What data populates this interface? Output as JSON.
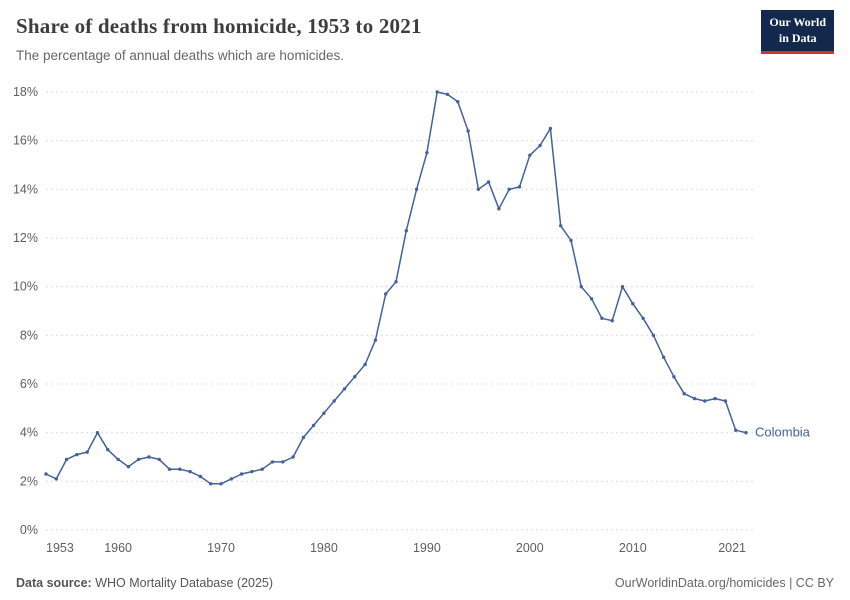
{
  "header": {
    "title": "Share of deaths from homicide, 1953 to 2021",
    "subtitle": "The percentage of annual deaths which are homicides.",
    "logo_line1": "Our World",
    "logo_line2": "in Data"
  },
  "colors": {
    "line": "#44619b",
    "logo_background": "#12294d",
    "logo_accent": "#d0362c",
    "gridline": "#dcdcdc"
  },
  "chart_data": {
    "type": "line",
    "title": "Share of deaths from homicide, 1953 to 2021",
    "subtitle": "The percentage of annual deaths which are homicides.",
    "series_label": "Colombia",
    "line_color": "#44619b",
    "xlim": [
      1953,
      2021
    ],
    "ylim": [
      0,
      18
    ],
    "yticks": [
      0,
      2,
      4,
      6,
      8,
      10,
      12,
      14,
      16,
      18
    ],
    "ytick_suffix": "%",
    "xticks": [
      1953,
      1960,
      1970,
      1980,
      1990,
      2000,
      2010,
      2021
    ],
    "grid": "horizontal-dashed",
    "legend_position": "end-of-line",
    "x": [
      1953,
      1954,
      1955,
      1956,
      1957,
      1958,
      1959,
      1960,
      1961,
      1962,
      1963,
      1964,
      1965,
      1966,
      1967,
      1968,
      1969,
      1970,
      1971,
      1972,
      1973,
      1974,
      1975,
      1976,
      1977,
      1978,
      1979,
      1980,
      1981,
      1982,
      1983,
      1984,
      1985,
      1986,
      1987,
      1988,
      1989,
      1990,
      1991,
      1992,
      1993,
      1994,
      1995,
      1996,
      1997,
      1998,
      1999,
      2000,
      2001,
      2002,
      2003,
      2004,
      2005,
      2006,
      2007,
      2008,
      2009,
      2010,
      2011,
      2012,
      2013,
      2014,
      2015,
      2016,
      2017,
      2018,
      2019,
      2020,
      2021
    ],
    "values": [
      2.3,
      2.1,
      2.9,
      3.1,
      3.2,
      4.0,
      3.3,
      2.9,
      2.6,
      2.9,
      3.0,
      2.9,
      2.5,
      2.5,
      2.4,
      2.2,
      1.9,
      1.9,
      2.1,
      2.3,
      2.4,
      2.5,
      2.8,
      2.8,
      3.0,
      3.8,
      4.3,
      4.8,
      5.3,
      5.8,
      6.3,
      6.8,
      7.8,
      9.7,
      10.2,
      12.3,
      14.0,
      15.5,
      18.0,
      17.9,
      17.6,
      16.4,
      14.0,
      14.3,
      13.2,
      14.0,
      14.1,
      15.4,
      15.8,
      16.5,
      12.5,
      11.9,
      10.0,
      9.5,
      8.7,
      8.6,
      10.0,
      9.3,
      8.7,
      8.0,
      7.1,
      6.3,
      5.6,
      5.4,
      5.3,
      5.4,
      5.3,
      4.1,
      4.0
    ]
  },
  "footer": {
    "source_label": "Data source:",
    "source_value": " WHO Mortality Database (2025)",
    "right_text": "OurWorldinData.org/homicides | CC BY"
  }
}
